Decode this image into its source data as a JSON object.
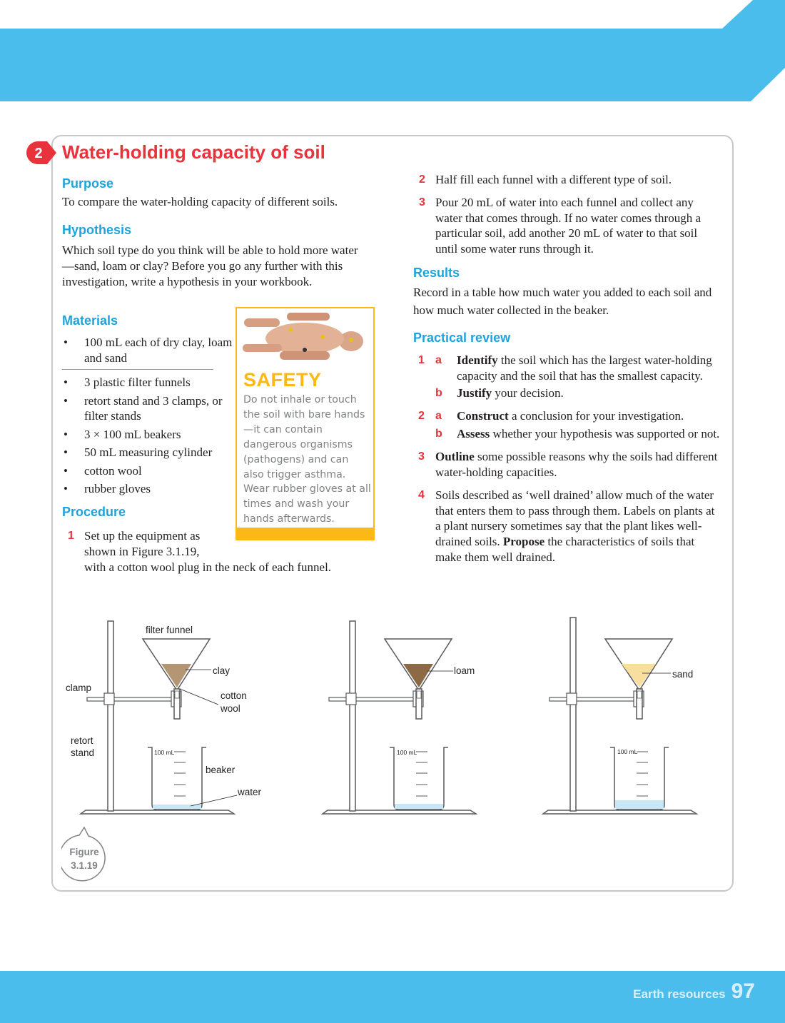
{
  "header": {
    "band_color": "#4bbdec"
  },
  "activity": {
    "number": "2",
    "title": "Water-holding capacity of soil",
    "accent": "#e8333c",
    "heading_color": "#1ea3dc"
  },
  "purpose": {
    "heading": "Purpose",
    "text": "To compare the water-holding capacity of different soils."
  },
  "hypothesis": {
    "heading": "Hypothesis",
    "text": "Which soil type do you think will be able to hold more water—sand, loam or clay? Before you go any further with this investigation, write a hypothesis in your workbook."
  },
  "materials": {
    "heading": "Materials",
    "items": [
      "100 mL each of dry clay, loam and sand",
      "3 plastic filter funnels",
      "retort stand and 3 clamps, or filter stands",
      "3 × 100 mL beakers",
      "50 mL measuring cylinder",
      "cotton wool",
      "rubber gloves"
    ]
  },
  "safety": {
    "title": "SAFETY",
    "text": "Do not inhale or touch the soil with bare hands—it can contain dangerous organisms (pathogens) and can also trigger asthma. Wear rubber gloves at all times and wash your hands afterwards.",
    "color": "#fbb817"
  },
  "procedure": {
    "heading": "Procedure",
    "steps": [
      {
        "n": "1",
        "text": "Set up the equipment as shown in Figure 3.1.19,",
        "text2": "with a cotton wool plug in the neck of each funnel."
      },
      {
        "n": "2",
        "text": "Half fill each funnel with a different type of soil."
      },
      {
        "n": "3",
        "text": "Pour 20 mL of water into each funnel and collect any water that comes through. If no water comes through a particular soil, add another 20 mL of water to that soil until some water runs through it."
      }
    ]
  },
  "results": {
    "heading": "Results",
    "text": "Record in a table how much water you added to each soil and how much water collected in the beaker."
  },
  "review": {
    "heading": "Practical review",
    "q1a_bold": "Identify",
    "q1a": " the soil which has the largest water-holding capacity and the soil that has the smallest capacity.",
    "q1b_bold": "Justify",
    "q1b": " your decision.",
    "q2a_bold": "Construct",
    "q2a": " a conclusion for your investigation.",
    "q2b_bold": "Assess",
    "q2b": " whether your hypothesis was supported or not.",
    "q3_bold": "Outline",
    "q3": " some possible reasons why the soils had different water-holding capacities.",
    "q4_a": "Soils described as ‘well drained’ allow much of the water that enters them to pass through them. Labels on plants at a plant nursery sometimes say that the plant likes well-drained soils. ",
    "q4_bold": "Propose",
    "q4_b": " the characteristics of soils that make them well drained.",
    "n1": "1",
    "n2": "2",
    "n3": "3",
    "n4": "4",
    "la": "a",
    "lb": "b"
  },
  "figure": {
    "labels": {
      "filter_funnel": "filter funnel",
      "clay": "clay",
      "cotton_wool_1": "cotton",
      "cotton_wool_2": "wool",
      "clamp": "clamp",
      "retort_1": "retort",
      "retort_2": "stand",
      "beaker": "beaker",
      "water": "water",
      "loam": "loam",
      "sand": "sand",
      "beaker_mark": "100 mL"
    },
    "caption_1": "Figure",
    "caption_2": "3.1.19",
    "colors": {
      "clay": "#b49674",
      "loam": "#8c6a45",
      "sand": "#f8dfa0",
      "water": "#c8e7f6"
    }
  },
  "footer": {
    "section": "Earth resources",
    "page": "97"
  }
}
